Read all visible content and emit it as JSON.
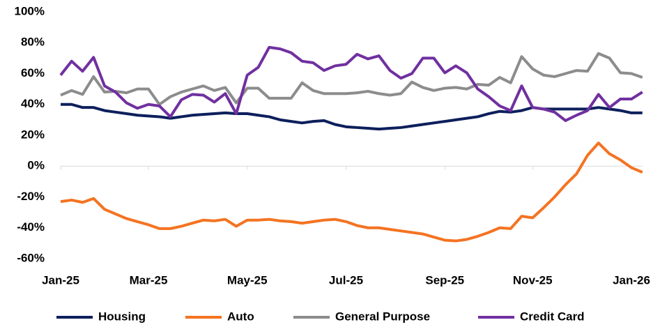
{
  "chart_data": {
    "type": "line",
    "categories": [
      "Jan-25",
      null,
      null,
      null,
      null,
      null,
      null,
      null,
      "Mar-25",
      null,
      null,
      null,
      null,
      null,
      null,
      null,
      null,
      "May-25",
      null,
      null,
      null,
      null,
      null,
      null,
      null,
      null,
      "Jul-25",
      null,
      null,
      null,
      null,
      null,
      null,
      null,
      null,
      "Sep-25",
      null,
      null,
      null,
      null,
      null,
      null,
      null,
      "Nov-25",
      null,
      null,
      null,
      null,
      null,
      null,
      null,
      null,
      "Jan-26",
      null
    ],
    "series": [
      {
        "name": "Housing",
        "color": "#0d1f5c",
        "values": [
          40,
          40,
          38,
          38,
          36,
          35,
          34,
          33,
          32.5,
          32,
          31,
          32,
          33,
          33.5,
          34,
          34.5,
          34,
          34,
          33,
          32,
          30,
          29,
          28,
          29,
          29.5,
          27,
          25.5,
          25,
          24.5,
          24,
          24.5,
          25,
          26,
          27,
          28,
          29,
          30,
          31,
          32,
          34,
          35.5,
          35,
          36,
          38,
          37,
          37,
          37,
          37,
          37,
          38,
          37,
          36,
          34.5,
          34.5
        ]
      },
      {
        "name": "Auto",
        "color": "#f47321",
        "values": [
          -23,
          -22,
          -23.5,
          -21,
          -28,
          -31,
          -34,
          -36,
          -38,
          -40.5,
          -40.5,
          -39,
          -37,
          -35,
          -35.5,
          -34.5,
          -39,
          -35,
          -35,
          -34.5,
          -35.5,
          -36,
          -37,
          -36,
          -35,
          -34.5,
          -36,
          -38.5,
          -40,
          -40,
          -41,
          -42,
          -43,
          -44,
          -46,
          -48,
          -48.5,
          -47.5,
          -45.5,
          -43,
          -40,
          -40.5,
          -32.5,
          -33.5,
          -27,
          -20,
          -12,
          -5,
          7,
          15,
          8,
          4,
          -1,
          -4
        ]
      },
      {
        "name": "General Purpose",
        "color": "#8c8c8c",
        "values": [
          46,
          49,
          46.5,
          58,
          48,
          48.5,
          47.5,
          50,
          50,
          40,
          45,
          48,
          50,
          52,
          49,
          51,
          41,
          50.5,
          50.5,
          44,
          44,
          44,
          54,
          49,
          47,
          47,
          47,
          47.5,
          48.5,
          47,
          46,
          47,
          54.5,
          51,
          49,
          50.5,
          51,
          50,
          53,
          52.5,
          57.5,
          54,
          71,
          63,
          59,
          58,
          60,
          62,
          61.5,
          73,
          70,
          60.5,
          60,
          57.5
        ]
      },
      {
        "name": "Credit Card",
        "color": "#7030a0",
        "values": [
          59,
          68,
          61.5,
          70.5,
          52,
          48,
          41,
          37.5,
          40,
          39,
          32,
          43,
          46.5,
          46,
          41.5,
          47,
          34,
          59,
          64,
          77,
          76,
          73.5,
          68,
          67,
          62,
          65,
          66,
          72.5,
          69.5,
          71.5,
          62,
          57,
          60,
          70,
          70,
          60.5,
          65,
          60.5,
          50,
          45,
          39,
          36,
          52,
          38,
          37,
          35,
          29.5,
          33,
          36,
          46.5,
          38,
          43.5,
          43.5,
          48
        ]
      }
    ],
    "ylim": [
      -60,
      100
    ],
    "yticks": [
      {
        "value": -60,
        "label": "-60%"
      },
      {
        "value": -40,
        "label": "-40%"
      },
      {
        "value": -20,
        "label": "-20%"
      },
      {
        "value": 0,
        "label": "0%"
      },
      {
        "value": 20,
        "label": "20%"
      },
      {
        "value": 40,
        "label": "40%"
      },
      {
        "value": 60,
        "label": "60%"
      },
      {
        "value": 80,
        "label": "80%"
      },
      {
        "value": 100,
        "label": "100%"
      }
    ],
    "grid": false,
    "legend": "bottom"
  }
}
